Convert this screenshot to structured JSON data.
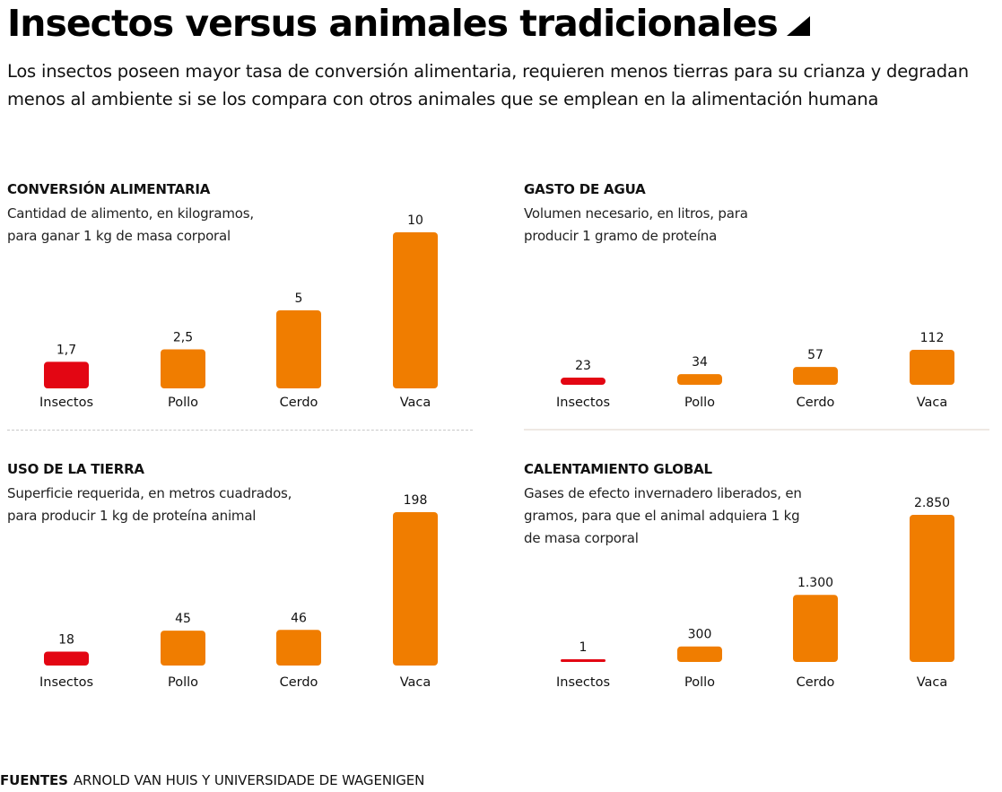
{
  "header": {
    "title": "Insectos versus animales tradicionales",
    "dek": "Los insectos poseen mayor tasa de conversión alimentaria, requieren menos tierras para su crianza y degradan menos al ambiente si se los compara con otros animales que se emplean en la alimentación humana"
  },
  "colors": {
    "highlight": "#e30613",
    "bar": "#f07d00",
    "text": "#111111"
  },
  "footer": {
    "label": "FUENTES",
    "text": "ARNOLD VAN HUIS  Y UNIVERSIDADE DE WAGENIGEN"
  },
  "chart_data": [
    {
      "type": "bar",
      "id": "conversion",
      "title": "CONVERSIÓN ALIMENTARIA",
      "subtitle": "Cantidad de alimento, en kilogramos, para ganar 1 kg de masa corporal",
      "categories": [
        "Insectos",
        "Pollo",
        "Cerdo",
        "Vaca"
      ],
      "values": [
        1.7,
        2.5,
        5,
        10
      ],
      "labels": [
        "1,7",
        "2,5",
        "5",
        "10"
      ],
      "highlight_index": 0,
      "ylim": [
        0,
        10
      ]
    },
    {
      "type": "bar",
      "id": "agua",
      "title": "GASTO DE AGUA",
      "subtitle": "Volumen necesario, en litros, para producir 1 gramo de proteína",
      "categories": [
        "Insectos",
        "Pollo",
        "Cerdo",
        "Vaca"
      ],
      "values": [
        23,
        34,
        57,
        112
      ],
      "labels": [
        "23",
        "34",
        "57",
        "112"
      ],
      "highlight_index": 0,
      "ylim": [
        0,
        224
      ]
    },
    {
      "type": "bar",
      "id": "tierra",
      "title": "USO DE LA TIERRA",
      "subtitle": "Superficie requerida, en metros cuadrados, para producir 1 kg de proteína animal",
      "categories": [
        "Insectos",
        "Pollo",
        "Cerdo",
        "Vaca"
      ],
      "values": [
        18,
        45,
        46,
        198
      ],
      "labels": [
        "18",
        "45",
        "46",
        "198"
      ],
      "highlight_index": 0,
      "ylim": [
        0,
        198
      ]
    },
    {
      "type": "bar",
      "id": "calentamiento",
      "title": "CALENTAMIENTO GLOBAL",
      "subtitle": "Gases de efecto invernadero liberados, en gramos, para que el animal adquiera 1 kg de masa corporal",
      "categories": [
        "Insectos",
        "Pollo",
        "Cerdo",
        "Vaca"
      ],
      "values": [
        1,
        300,
        1300,
        2850
      ],
      "labels": [
        "1",
        "300",
        "1.300",
        "2.850"
      ],
      "highlight_index": 0,
      "ylim": [
        0,
        2850
      ]
    }
  ]
}
